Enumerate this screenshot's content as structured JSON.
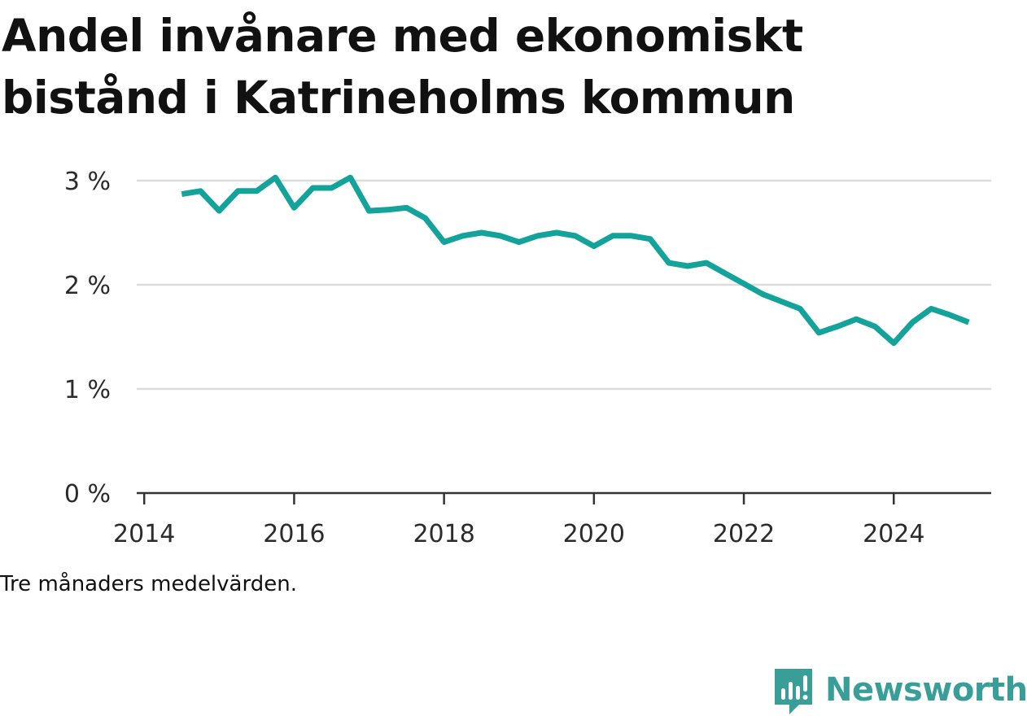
{
  "title": "Andel invånare med ekonomiskt bistånd i Katrineholms kommun",
  "note": "Tre månaders medelvärden.",
  "brand": {
    "name": "Newsworthy",
    "icon": "bar-chart-speech-bubble-icon",
    "color": "#3a9e98"
  },
  "chart_data": {
    "type": "line",
    "grid": true,
    "y_axis": {
      "ticks": [
        0,
        1,
        2,
        3
      ],
      "tick_labels": [
        "0 %",
        "1 %",
        "2 %",
        "3 %"
      ],
      "ylim": [
        0,
        3
      ]
    },
    "x_axis": {
      "ticks": [
        2014,
        2016,
        2018,
        2020,
        2022,
        2024
      ],
      "tick_labels": [
        "2014",
        "2016",
        "2018",
        "2020",
        "2022",
        "2024"
      ],
      "xlim": [
        2013.9,
        2025.3
      ]
    },
    "series": [
      {
        "color": "#14a39a",
        "points": [
          [
            2014.5,
            2.87
          ],
          [
            2014.75,
            2.9
          ],
          [
            2015.0,
            2.71
          ],
          [
            2015.25,
            2.9
          ],
          [
            2015.5,
            2.9
          ],
          [
            2015.75,
            3.03
          ],
          [
            2016.0,
            2.74
          ],
          [
            2016.25,
            2.93
          ],
          [
            2016.5,
            2.93
          ],
          [
            2016.75,
            3.03
          ],
          [
            2017.0,
            2.71
          ],
          [
            2017.25,
            2.72
          ],
          [
            2017.5,
            2.74
          ],
          [
            2017.75,
            2.64
          ],
          [
            2018.0,
            2.41
          ],
          [
            2018.25,
            2.47
          ],
          [
            2018.5,
            2.5
          ],
          [
            2018.75,
            2.47
          ],
          [
            2019.0,
            2.41
          ],
          [
            2019.25,
            2.47
          ],
          [
            2019.5,
            2.5
          ],
          [
            2019.75,
            2.47
          ],
          [
            2020.0,
            2.37
          ],
          [
            2020.25,
            2.47
          ],
          [
            2020.5,
            2.47
          ],
          [
            2020.75,
            2.44
          ],
          [
            2021.0,
            2.21
          ],
          [
            2021.25,
            2.18
          ],
          [
            2021.5,
            2.21
          ],
          [
            2021.75,
            2.11
          ],
          [
            2022.0,
            2.01
          ],
          [
            2022.25,
            1.91
          ],
          [
            2022.5,
            1.84
          ],
          [
            2022.75,
            1.77
          ],
          [
            2023.0,
            1.54
          ],
          [
            2023.25,
            1.6
          ],
          [
            2023.5,
            1.67
          ],
          [
            2023.75,
            1.6
          ],
          [
            2024.0,
            1.44
          ],
          [
            2024.25,
            1.64
          ],
          [
            2024.5,
            1.77
          ],
          [
            2024.75,
            1.71
          ],
          [
            2025.0,
            1.64
          ]
        ]
      }
    ]
  }
}
